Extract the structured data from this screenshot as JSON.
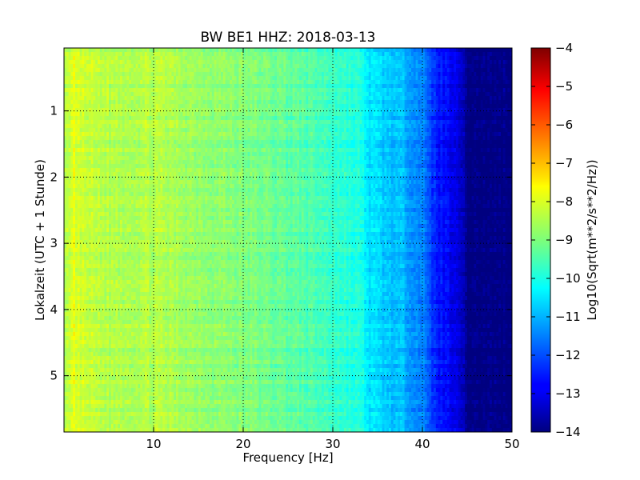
{
  "chart_data": {
    "type": "heatmap",
    "title": "BW BE1 HHZ: 2018-03-13",
    "xlabel": "Frequency [Hz]",
    "ylabel": "Lokalzeit (UTC + 1 Stunde)",
    "xlim": [
      0,
      50
    ],
    "ylim": [
      5.85,
      0.05
    ],
    "x_ticks": [
      10,
      20,
      30,
      40,
      50
    ],
    "y_ticks": [
      1,
      2,
      3,
      4,
      5
    ],
    "grid": true,
    "colorbar": {
      "label": "Log10(Sqrt(m**2/s**2/Hz))",
      "range": [
        -14,
        -4
      ],
      "ticks": [
        -4,
        -5,
        -6,
        -7,
        -8,
        -9,
        -10,
        -11,
        -12,
        -13,
        -14
      ],
      "colormap": "jet"
    },
    "frequency_profile": {
      "frequency_hz": [
        0.5,
        1,
        2,
        5,
        10,
        14,
        20,
        25,
        30,
        33,
        34,
        36,
        38,
        40,
        41,
        42,
        43,
        44,
        45,
        50
      ],
      "log10_amplitude": [
        -8.5,
        -8.0,
        -8.3,
        -8.5,
        -8.5,
        -8.7,
        -9.0,
        -9.3,
        -9.7,
        -10.0,
        -10.5,
        -10.8,
        -11.0,
        -11.5,
        -12.2,
        -12.6,
        -12.8,
        -13.0,
        -14.0,
        -14.0
      ]
    }
  }
}
